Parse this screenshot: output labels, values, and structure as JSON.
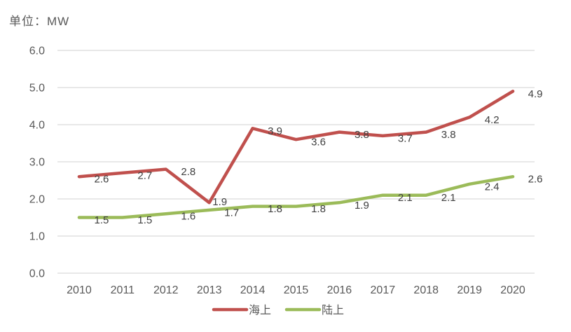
{
  "unit_label": "单位：MW",
  "colors": {
    "offshore": "#C0504D",
    "onshore": "#9BBB59",
    "gridline": "#D9D9D9",
    "axis_text": "#595959",
    "value_text": "#3F3F3F"
  },
  "chart_data": {
    "type": "line",
    "title": "",
    "unit": "单位：MW",
    "categories": [
      "2010",
      "2011",
      "2012",
      "2013",
      "2014",
      "2015",
      "2016",
      "2017",
      "2018",
      "2019",
      "2020"
    ],
    "series": [
      {
        "name": "海上",
        "color": "#C0504D",
        "values": [
          2.6,
          2.7,
          2.8,
          1.9,
          3.9,
          3.6,
          3.8,
          3.7,
          3.8,
          4.2,
          4.9
        ]
      },
      {
        "name": "陆上",
        "color": "#9BBB59",
        "values": [
          1.5,
          1.5,
          1.6,
          1.7,
          1.8,
          1.8,
          1.9,
          2.1,
          2.1,
          2.4,
          2.6
        ]
      }
    ],
    "ylim": [
      0,
      6
    ],
    "ytick_step": 1,
    "ytick_labels": [
      "0.0",
      "1.0",
      "2.0",
      "3.0",
      "4.0",
      "5.0",
      "6.0"
    ],
    "grid": true,
    "data_labels": true,
    "legend_position": "bottom"
  }
}
